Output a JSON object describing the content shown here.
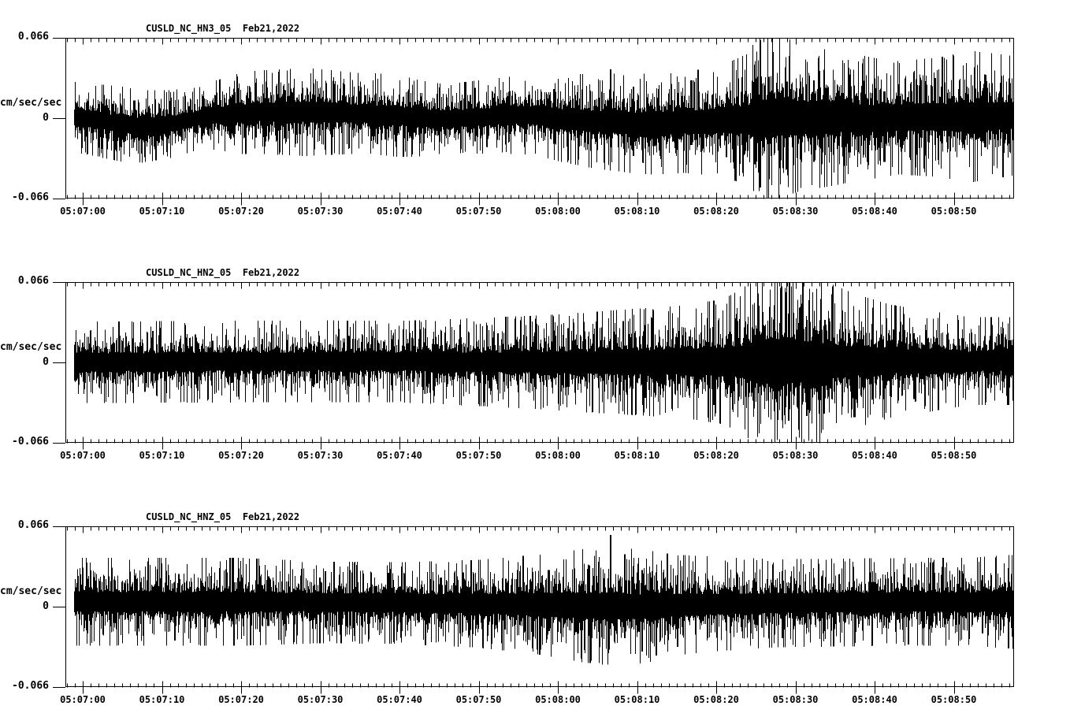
{
  "page": {
    "background": "#ffffff",
    "foreground": "#000000"
  },
  "time_axis": {
    "reference_time": "05:07:00",
    "start_offset_s": -2.19,
    "end_offset_s": 117.61,
    "major_tick_interval_s": 10,
    "minor_tick_interval_s": 1,
    "major_tick_labels": [
      "05:07:00",
      "05:07:10",
      "05:07:20",
      "05:07:30",
      "05:07:40",
      "05:07:50",
      "05:08:00",
      "05:08:10",
      "05:08:20",
      "05:08:30",
      "05:08:40",
      "05:08:50"
    ]
  },
  "chart_data": [
    {
      "type": "line",
      "title": "CUSLD_NC_HN3_05  Feb21,2022",
      "ylabel": "cm/sec/sec",
      "ylim": [
        -0.066,
        0.066
      ],
      "ytick_labels": [
        "0.066",
        "0",
        "-0.066"
      ],
      "seed": 7,
      "trace_start_s": -1.1,
      "baseline_points": [
        [
          -2.19,
          0.002
        ],
        [
          4,
          -0.004
        ],
        [
          7,
          -0.007
        ],
        [
          11,
          -0.005
        ],
        [
          16,
          0.002
        ],
        [
          22,
          0.005
        ],
        [
          30,
          0.005
        ],
        [
          38,
          0.003
        ],
        [
          44,
          -0.001
        ],
        [
          50,
          0.001
        ],
        [
          56,
          0.003
        ],
        [
          60,
          0.0
        ],
        [
          66,
          -0.003
        ],
        [
          72,
          -0.005
        ],
        [
          78,
          -0.003
        ],
        [
          84,
          -0.001
        ],
        [
          90,
          0.001
        ],
        [
          100,
          0.0
        ],
        [
          110,
          0.001
        ],
        [
          117.61,
          0.002
        ]
      ],
      "envelope_points": [
        [
          -2.19,
          0.011
        ],
        [
          5,
          0.012
        ],
        [
          10,
          0.011
        ],
        [
          15,
          0.01
        ],
        [
          20,
          0.013
        ],
        [
          28,
          0.014
        ],
        [
          34,
          0.013
        ],
        [
          40,
          0.013
        ],
        [
          46,
          0.011
        ],
        [
          52,
          0.012
        ],
        [
          58,
          0.013
        ],
        [
          64,
          0.015
        ],
        [
          70,
          0.016
        ],
        [
          76,
          0.016
        ],
        [
          81,
          0.018
        ],
        [
          84,
          0.021
        ],
        [
          85.5,
          0.028
        ],
        [
          87,
          0.027
        ],
        [
          90,
          0.024
        ],
        [
          94,
          0.022
        ],
        [
          98,
          0.02
        ],
        [
          103,
          0.018
        ],
        [
          108,
          0.019
        ],
        [
          112,
          0.021
        ],
        [
          117.61,
          0.019
        ]
      ],
      "spikes": [
        [
          21.8,
          0.029,
          -0.016
        ],
        [
          49.5,
          0.025,
          -0.019
        ],
        [
          59.5,
          0.024,
          -0.021
        ],
        [
          66.6,
          0.04,
          -0.024
        ],
        [
          69.5,
          0.026,
          -0.031
        ],
        [
          76.8,
          0.031,
          -0.022
        ],
        [
          84.8,
          0.044,
          -0.038
        ],
        [
          85.5,
          0.064,
          -0.057
        ],
        [
          86.6,
          0.034,
          -0.05
        ],
        [
          88.9,
          0.03,
          -0.042
        ],
        [
          92.3,
          0.031,
          -0.036
        ],
        [
          96.8,
          0.036,
          -0.028
        ],
        [
          101.2,
          0.022,
          -0.036
        ],
        [
          107.6,
          0.033,
          -0.021
        ],
        [
          113.9,
          0.036,
          -0.024
        ]
      ]
    },
    {
      "type": "line",
      "title": "CUSLD_NC_HN2_05  Feb21,2022",
      "ylabel": "cm/sec/sec",
      "ylim": [
        -0.066,
        0.066
      ],
      "ytick_labels": [
        "0.066",
        "0",
        "-0.066"
      ],
      "seed": 11,
      "trace_start_s": -1.1,
      "baseline_points": [
        [
          -2.19,
          0.0
        ],
        [
          30,
          0.001
        ],
        [
          60,
          0.0
        ],
        [
          90,
          0.001
        ],
        [
          117.61,
          0.001
        ]
      ],
      "envelope_points": [
        [
          -2.19,
          0.013
        ],
        [
          10,
          0.013
        ],
        [
          20,
          0.013
        ],
        [
          30,
          0.013
        ],
        [
          40,
          0.013
        ],
        [
          50,
          0.014
        ],
        [
          58,
          0.015
        ],
        [
          64,
          0.016
        ],
        [
          70,
          0.017
        ],
        [
          76,
          0.018
        ],
        [
          81,
          0.02
        ],
        [
          85,
          0.026
        ],
        [
          87.5,
          0.031
        ],
        [
          89.5,
          0.031
        ],
        [
          92,
          0.027
        ],
        [
          95,
          0.024
        ],
        [
          98,
          0.021
        ],
        [
          102,
          0.018
        ],
        [
          107,
          0.016
        ],
        [
          112,
          0.014
        ],
        [
          117.61,
          0.014
        ]
      ],
      "spikes": [
        [
          8.8,
          0.026,
          -0.016
        ],
        [
          14.2,
          0.023,
          -0.018
        ],
        [
          33.5,
          0.022,
          -0.019
        ],
        [
          52.4,
          0.024,
          -0.018
        ],
        [
          61.3,
          0.028,
          -0.02
        ],
        [
          68.2,
          0.034,
          -0.023
        ],
        [
          71.0,
          0.027,
          -0.029
        ],
        [
          79.6,
          0.029,
          -0.035
        ],
        [
          87.3,
          0.047,
          -0.04
        ],
        [
          89.1,
          0.04,
          -0.048
        ],
        [
          91.4,
          0.035,
          -0.044
        ],
        [
          93.6,
          0.03,
          -0.042
        ],
        [
          97.4,
          0.026,
          -0.045
        ],
        [
          104.9,
          0.024,
          -0.03
        ]
      ]
    },
    {
      "type": "line",
      "title": "CUSLD_NC_HNZ_05  Feb21,2022",
      "ylabel": "cm/sec/sec",
      "ylim": [
        -0.066,
        0.066
      ],
      "ytick_labels": [
        "0.066",
        "0",
        "-0.066"
      ],
      "seed": 23,
      "trace_start_s": -1.1,
      "baseline_points": [
        [
          -2.19,
          0.004
        ],
        [
          20,
          0.004
        ],
        [
          40,
          0.003
        ],
        [
          55,
          0.002
        ],
        [
          62,
          0.001
        ],
        [
          70,
          0.0
        ],
        [
          78,
          0.002
        ],
        [
          90,
          0.003
        ],
        [
          105,
          0.004
        ],
        [
          117.61,
          0.004
        ]
      ],
      "envelope_points": [
        [
          -2.19,
          0.014
        ],
        [
          10,
          0.014
        ],
        [
          20,
          0.014
        ],
        [
          30,
          0.013
        ],
        [
          40,
          0.013
        ],
        [
          50,
          0.014
        ],
        [
          58,
          0.016
        ],
        [
          63,
          0.018
        ],
        [
          67,
          0.019
        ],
        [
          71,
          0.018
        ],
        [
          75,
          0.016
        ],
        [
          80,
          0.015
        ],
        [
          88,
          0.014
        ],
        [
          96,
          0.014
        ],
        [
          104,
          0.014
        ],
        [
          112,
          0.014
        ],
        [
          117.61,
          0.015
        ]
      ],
      "spikes": [
        [
          12.1,
          0.027,
          -0.015
        ],
        [
          23.4,
          0.025,
          -0.016
        ],
        [
          30.6,
          0.029,
          -0.017
        ],
        [
          45.2,
          0.024,
          -0.018
        ],
        [
          58.8,
          0.03,
          -0.02
        ],
        [
          63.9,
          0.034,
          -0.024
        ],
        [
          66.6,
          0.059,
          -0.018
        ],
        [
          68.4,
          0.043,
          -0.026
        ],
        [
          70.6,
          0.03,
          -0.037
        ],
        [
          72.4,
          0.028,
          -0.04
        ],
        [
          75.1,
          0.026,
          -0.033
        ],
        [
          88.3,
          0.029,
          -0.026
        ],
        [
          104.2,
          0.024,
          -0.031
        ],
        [
          113.6,
          0.026,
          -0.022
        ]
      ]
    }
  ]
}
